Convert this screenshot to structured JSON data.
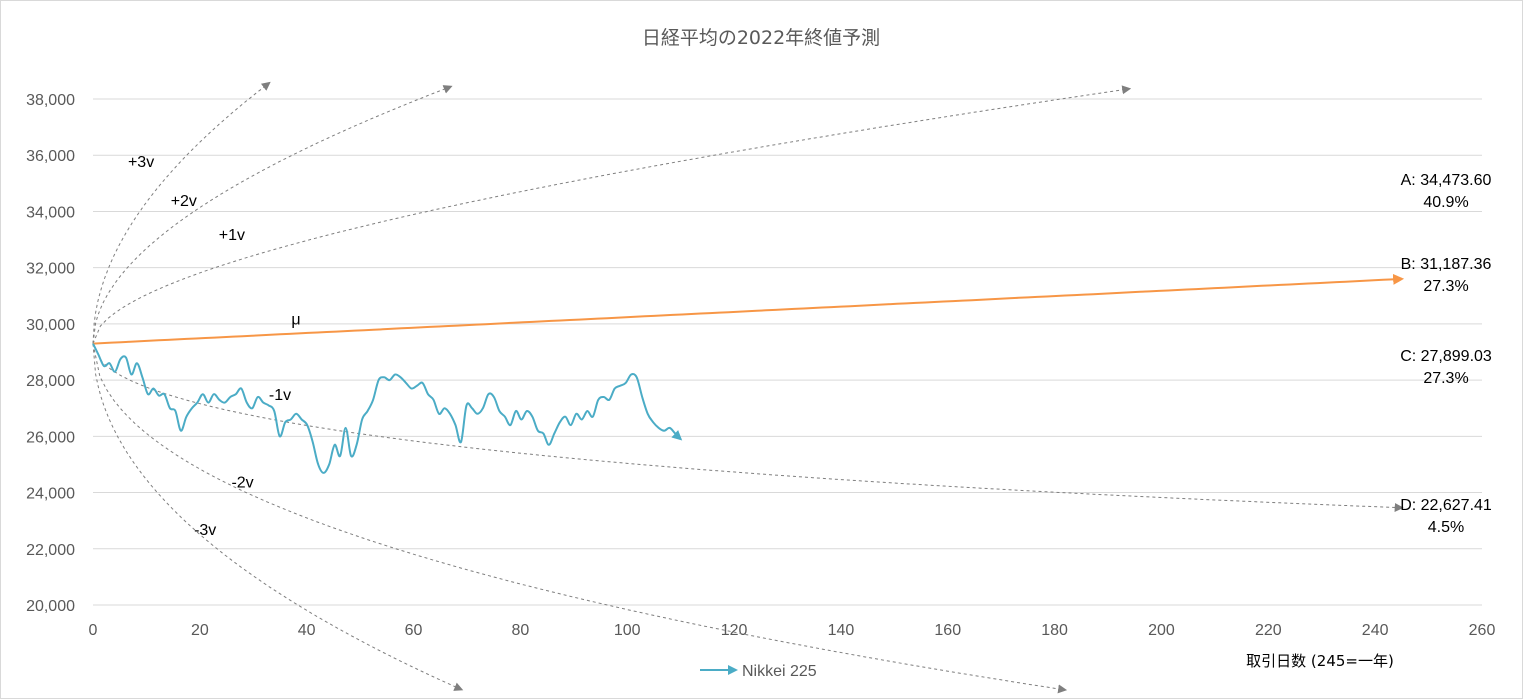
{
  "chart_data": {
    "type": "line",
    "title": "日経平均の2022年終値予測",
    "xlabel": "取引日数 (245=一年)",
    "ylabel": "",
    "xlim": [
      0,
      260
    ],
    "ylim": [
      20000,
      38000
    ],
    "x_ticks": [
      0,
      20,
      40,
      60,
      80,
      100,
      120,
      140,
      160,
      180,
      200,
      220,
      240,
      260
    ],
    "y_ticks": [
      20000,
      22000,
      24000,
      26000,
      28000,
      30000,
      32000,
      34000,
      36000,
      38000
    ],
    "x_tick_labels": [
      "0",
      "20",
      "40",
      "60",
      "80",
      "100",
      "120",
      "140",
      "160",
      "180",
      "200",
      "220",
      "240",
      "260"
    ],
    "y_tick_labels": [
      "20,000",
      "22,000",
      "24,000",
      "26,000",
      "28,000",
      "30,000",
      "32,000",
      "34,000",
      "36,000",
      "38,000"
    ],
    "grid": "horizontal",
    "legend_position": "bottom",
    "start": {
      "x": 0,
      "y": 29300
    },
    "series": [
      {
        "name": "Nikkei 225",
        "color": "#4bacc6",
        "points": [
          [
            0,
            29300
          ],
          [
            1,
            28900
          ],
          [
            2,
            28500
          ],
          [
            3,
            28600
          ],
          [
            4,
            28300
          ],
          [
            5,
            28750
          ],
          [
            6,
            28800
          ],
          [
            7,
            28200
          ],
          [
            8,
            28600
          ],
          [
            9,
            28100
          ],
          [
            10,
            27500
          ],
          [
            11,
            27700
          ],
          [
            12,
            27450
          ],
          [
            13,
            27500
          ],
          [
            14,
            27000
          ],
          [
            15,
            26900
          ],
          [
            16,
            26200
          ],
          [
            17,
            26700
          ],
          [
            18,
            27000
          ],
          [
            19,
            27200
          ],
          [
            20,
            27500
          ],
          [
            21,
            27200
          ],
          [
            22,
            27500
          ],
          [
            23,
            27300
          ],
          [
            24,
            27200
          ],
          [
            25,
            27400
          ],
          [
            26,
            27500
          ],
          [
            27,
            27700
          ],
          [
            28,
            27200
          ],
          [
            29,
            27000
          ],
          [
            30,
            27400
          ],
          [
            31,
            27200
          ],
          [
            32,
            27100
          ],
          [
            33,
            26900
          ],
          [
            34,
            26000
          ],
          [
            35,
            26500
          ],
          [
            36,
            26600
          ],
          [
            37,
            26800
          ],
          [
            38,
            26600
          ],
          [
            39,
            26400
          ],
          [
            40,
            25800
          ],
          [
            41,
            25000
          ],
          [
            42,
            24700
          ],
          [
            43,
            25000
          ],
          [
            44,
            25700
          ],
          [
            45,
            25300
          ],
          [
            46,
            26300
          ],
          [
            47,
            25300
          ],
          [
            48,
            25700
          ],
          [
            49,
            26600
          ],
          [
            50,
            26900
          ],
          [
            51,
            27300
          ],
          [
            52,
            28000
          ],
          [
            53,
            28100
          ],
          [
            54,
            28000
          ],
          [
            55,
            28200
          ],
          [
            56,
            28100
          ],
          [
            57,
            27900
          ],
          [
            58,
            27700
          ],
          [
            59,
            27800
          ],
          [
            60,
            27900
          ],
          [
            61,
            27500
          ],
          [
            62,
            27300
          ],
          [
            63,
            26800
          ],
          [
            64,
            27000
          ],
          [
            65,
            26800
          ],
          [
            66,
            26400
          ],
          [
            67,
            25800
          ],
          [
            68,
            27100
          ],
          [
            69,
            27000
          ],
          [
            70,
            26800
          ],
          [
            71,
            27000
          ],
          [
            72,
            27500
          ],
          [
            73,
            27400
          ],
          [
            74,
            26900
          ],
          [
            75,
            26700
          ],
          [
            76,
            26400
          ],
          [
            77,
            26900
          ],
          [
            78,
            26600
          ],
          [
            79,
            26900
          ],
          [
            80,
            26700
          ],
          [
            81,
            26200
          ],
          [
            82,
            26100
          ],
          [
            83,
            25700
          ],
          [
            84,
            26100
          ],
          [
            85,
            26500
          ],
          [
            86,
            26700
          ],
          [
            87,
            26400
          ],
          [
            88,
            26800
          ],
          [
            89,
            26600
          ],
          [
            90,
            26900
          ],
          [
            91,
            26700
          ],
          [
            92,
            27300
          ],
          [
            93,
            27400
          ],
          [
            94,
            27300
          ],
          [
            95,
            27700
          ],
          [
            96,
            27800
          ],
          [
            97,
            27900
          ],
          [
            98,
            28200
          ],
          [
            99,
            28100
          ],
          [
            100,
            27400
          ],
          [
            101,
            26800
          ],
          [
            102,
            26500
          ],
          [
            103,
            26300
          ],
          [
            104,
            26200
          ],
          [
            105,
            26300
          ],
          [
            106,
            26100
          ],
          [
            107,
            25900
          ]
        ]
      }
    ],
    "projections": [
      {
        "label": "+3v",
        "sign": 3,
        "x_end": 33,
        "style": "dashed"
      },
      {
        "label": "+2v",
        "sign": 2,
        "x_end": 67,
        "style": "dashed"
      },
      {
        "label": "+1v",
        "sign": 1,
        "x_end": 194,
        "style": "dashed"
      },
      {
        "label": "μ",
        "sign": 0,
        "x_end": 245,
        "style": "solid",
        "color": "#f79646"
      },
      {
        "label": "-1v",
        "sign": -1,
        "x_end": 245,
        "style": "dashed"
      },
      {
        "label": "-2v",
        "sign": -2,
        "x_end": 182,
        "style": "dashed"
      },
      {
        "label": "-3v",
        "sign": -3,
        "x_end": 69,
        "style": "dashed"
      }
    ],
    "annotations": [
      {
        "line1": "A: 34,473.60",
        "line2": "40.9%"
      },
      {
        "line1": "B: 31,187.36",
        "line2": "27.3%"
      },
      {
        "line1": "C: 27,899.03",
        "line2": "27.3%"
      },
      {
        "line1": "D: 22,627.41",
        "line2": "4.5%"
      }
    ],
    "colors": {
      "nikkei": "#4bacc6",
      "mu": "#f79646",
      "dashed": "#7f7f7f",
      "grid": "#d9d9d9",
      "axis_text": "#595959"
    }
  }
}
